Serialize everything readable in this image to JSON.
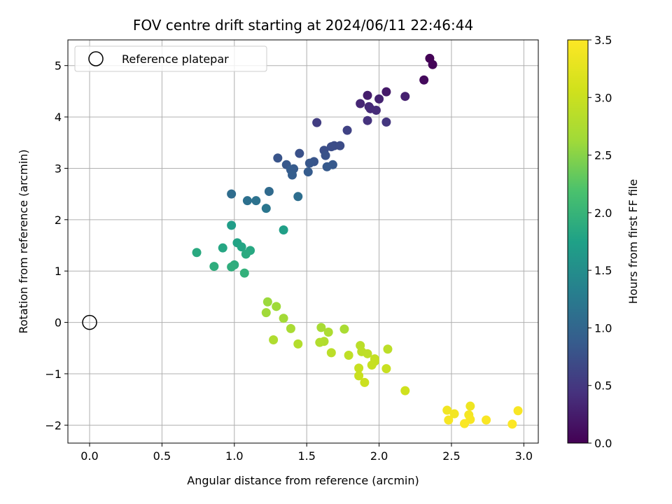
{
  "chart_data": {
    "type": "scatter",
    "title": "FOV centre drift starting at 2024/06/11 22:46:44",
    "xlabel": "Angular distance from reference (arcmin)",
    "ylabel": "Rotation from reference (arcmin)",
    "xlim": [
      -0.15,
      3.1
    ],
    "ylim": [
      -2.35,
      5.5
    ],
    "xticks": [
      0.0,
      0.5,
      1.0,
      1.5,
      2.0,
      2.5,
      3.0
    ],
    "xtick_labels": [
      "0.0",
      "0.5",
      "1.0",
      "1.5",
      "2.0",
      "2.5",
      "3.0"
    ],
    "yticks": [
      -2,
      -1,
      0,
      1,
      2,
      3,
      4,
      5
    ],
    "ytick_labels": [
      "−2",
      "−1",
      "0",
      "1",
      "2",
      "3",
      "4",
      "5"
    ],
    "grid": true,
    "legend": {
      "placement": "upper-left",
      "entries": [
        "Reference platepar"
      ]
    },
    "reference_point": {
      "x": 0.0,
      "y": 0.0,
      "marker": "open-circle"
    },
    "colorbar": {
      "label": "Hours from first FF file",
      "colormap": "viridis",
      "range": [
        0.0,
        3.5
      ],
      "ticks": [
        0.0,
        0.5,
        1.0,
        1.5,
        2.0,
        2.5,
        3.0,
        3.5
      ],
      "tick_labels": [
        "0.0",
        "0.5",
        "1.0",
        "1.5",
        "2.0",
        "2.5",
        "3.0",
        "3.5"
      ]
    },
    "points": [
      {
        "x": 2.35,
        "y": 5.14,
        "c": 0.02
      },
      {
        "x": 2.37,
        "y": 5.02,
        "c": 0.04
      },
      {
        "x": 2.31,
        "y": 4.72,
        "c": 0.08
      },
      {
        "x": 2.05,
        "y": 4.49,
        "c": 0.22
      },
      {
        "x": 1.92,
        "y": 4.42,
        "c": 0.25
      },
      {
        "x": 2.18,
        "y": 4.4,
        "c": 0.28
      },
      {
        "x": 2.0,
        "y": 4.35,
        "c": 0.3
      },
      {
        "x": 1.87,
        "y": 4.26,
        "c": 0.33
      },
      {
        "x": 1.93,
        "y": 4.2,
        "c": 0.35
      },
      {
        "x": 1.94,
        "y": 4.16,
        "c": 0.37
      },
      {
        "x": 1.98,
        "y": 4.13,
        "c": 0.38
      },
      {
        "x": 1.92,
        "y": 3.93,
        "c": 0.45
      },
      {
        "x": 2.05,
        "y": 3.9,
        "c": 0.48
      },
      {
        "x": 1.57,
        "y": 3.89,
        "c": 0.55
      },
      {
        "x": 1.78,
        "y": 3.74,
        "c": 0.6
      },
      {
        "x": 1.69,
        "y": 3.44,
        "c": 0.7
      },
      {
        "x": 1.73,
        "y": 3.44,
        "c": 0.71
      },
      {
        "x": 1.67,
        "y": 3.42,
        "c": 0.72
      },
      {
        "x": 1.62,
        "y": 3.35,
        "c": 0.73
      },
      {
        "x": 1.45,
        "y": 3.29,
        "c": 0.76
      },
      {
        "x": 1.63,
        "y": 3.25,
        "c": 0.77
      },
      {
        "x": 1.3,
        "y": 3.2,
        "c": 0.79
      },
      {
        "x": 1.55,
        "y": 3.13,
        "c": 0.8
      },
      {
        "x": 1.52,
        "y": 3.1,
        "c": 0.82
      },
      {
        "x": 1.36,
        "y": 3.07,
        "c": 0.83
      },
      {
        "x": 1.68,
        "y": 3.07,
        "c": 0.84
      },
      {
        "x": 1.64,
        "y": 3.03,
        "c": 0.85
      },
      {
        "x": 1.41,
        "y": 2.99,
        "c": 0.86
      },
      {
        "x": 1.39,
        "y": 2.97,
        "c": 0.87
      },
      {
        "x": 1.51,
        "y": 2.93,
        "c": 0.88
      },
      {
        "x": 1.4,
        "y": 2.87,
        "c": 0.9
      },
      {
        "x": 1.24,
        "y": 2.55,
        "c": 1.05
      },
      {
        "x": 0.98,
        "y": 2.5,
        "c": 1.08
      },
      {
        "x": 1.44,
        "y": 2.45,
        "c": 1.1
      },
      {
        "x": 1.09,
        "y": 2.37,
        "c": 1.13
      },
      {
        "x": 1.15,
        "y": 2.37,
        "c": 1.15
      },
      {
        "x": 1.22,
        "y": 2.22,
        "c": 1.2
      },
      {
        "x": 0.98,
        "y": 1.89,
        "c": 1.7
      },
      {
        "x": 1.34,
        "y": 1.8,
        "c": 1.72
      },
      {
        "x": 1.02,
        "y": 1.55,
        "c": 1.78
      },
      {
        "x": 1.05,
        "y": 1.47,
        "c": 1.8
      },
      {
        "x": 0.92,
        "y": 1.45,
        "c": 1.82
      },
      {
        "x": 1.11,
        "y": 1.4,
        "c": 1.84
      },
      {
        "x": 0.74,
        "y": 1.36,
        "c": 1.86
      },
      {
        "x": 1.08,
        "y": 1.33,
        "c": 1.87
      },
      {
        "x": 1.0,
        "y": 1.12,
        "c": 1.9
      },
      {
        "x": 0.86,
        "y": 1.09,
        "c": 1.91
      },
      {
        "x": 0.98,
        "y": 1.08,
        "c": 1.92
      },
      {
        "x": 1.07,
        "y": 0.96,
        "c": 1.95
      },
      {
        "x": 1.23,
        "y": 0.4,
        "c": 2.6
      },
      {
        "x": 1.29,
        "y": 0.31,
        "c": 2.62
      },
      {
        "x": 1.22,
        "y": 0.19,
        "c": 2.63
      },
      {
        "x": 1.34,
        "y": 0.08,
        "c": 2.65
      },
      {
        "x": 1.6,
        "y": -0.1,
        "c": 2.7
      },
      {
        "x": 1.76,
        "y": -0.13,
        "c": 2.72
      },
      {
        "x": 1.39,
        "y": -0.12,
        "c": 2.71
      },
      {
        "x": 1.65,
        "y": -0.19,
        "c": 2.74
      },
      {
        "x": 1.27,
        "y": -0.34,
        "c": 2.76
      },
      {
        "x": 1.62,
        "y": -0.37,
        "c": 2.78
      },
      {
        "x": 1.59,
        "y": -0.39,
        "c": 2.79
      },
      {
        "x": 1.44,
        "y": -0.42,
        "c": 2.8
      },
      {
        "x": 1.87,
        "y": -0.45,
        "c": 2.86
      },
      {
        "x": 2.06,
        "y": -0.52,
        "c": 2.88
      },
      {
        "x": 1.88,
        "y": -0.57,
        "c": 2.89
      },
      {
        "x": 1.67,
        "y": -0.59,
        "c": 2.87
      },
      {
        "x": 1.92,
        "y": -0.61,
        "c": 2.9
      },
      {
        "x": 1.79,
        "y": -0.64,
        "c": 2.91
      },
      {
        "x": 1.97,
        "y": -0.71,
        "c": 2.95
      },
      {
        "x": 1.97,
        "y": -0.76,
        "c": 2.96
      },
      {
        "x": 1.95,
        "y": -0.83,
        "c": 2.97
      },
      {
        "x": 2.05,
        "y": -0.9,
        "c": 2.99
      },
      {
        "x": 1.86,
        "y": -0.89,
        "c": 2.98
      },
      {
        "x": 1.86,
        "y": -1.04,
        "c": 3.0
      },
      {
        "x": 1.9,
        "y": -1.17,
        "c": 3.02
      },
      {
        "x": 2.18,
        "y": -1.33,
        "c": 3.05
      },
      {
        "x": 2.63,
        "y": -1.63,
        "c": 3.35
      },
      {
        "x": 2.47,
        "y": -1.71,
        "c": 3.38
      },
      {
        "x": 2.96,
        "y": -1.72,
        "c": 3.45
      },
      {
        "x": 2.52,
        "y": -1.78,
        "c": 3.4
      },
      {
        "x": 2.62,
        "y": -1.8,
        "c": 3.41
      },
      {
        "x": 2.48,
        "y": -1.9,
        "c": 3.43
      },
      {
        "x": 2.63,
        "y": -1.89,
        "c": 3.44
      },
      {
        "x": 2.74,
        "y": -1.9,
        "c": 3.46
      },
      {
        "x": 2.59,
        "y": -1.97,
        "c": 3.47
      },
      {
        "x": 2.92,
        "y": -1.98,
        "c": 3.49
      }
    ]
  }
}
